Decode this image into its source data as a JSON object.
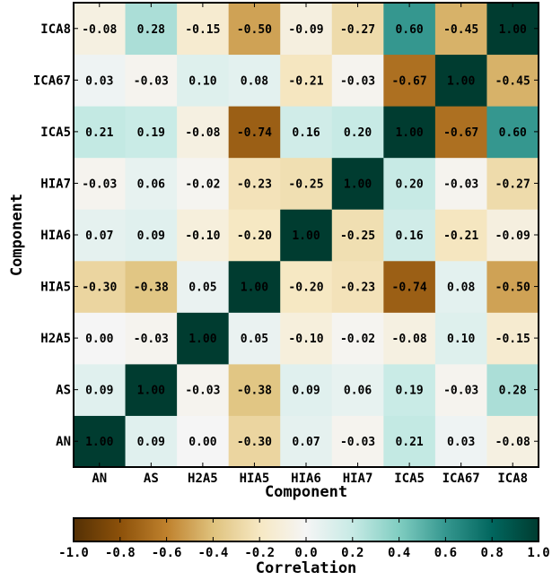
{
  "chart_data": {
    "type": "heatmap",
    "x_categories": [
      "AN",
      "AS",
      "H2A5",
      "HIA5",
      "HIA6",
      "HIA7",
      "ICA5",
      "ICA67",
      "ICA8"
    ],
    "y_categories": [
      "AN",
      "AS",
      "H2A5",
      "HIA5",
      "HIA6",
      "HIA7",
      "ICA5",
      "ICA67",
      "ICA8"
    ],
    "y_order": "bottom-to-top",
    "matrix": [
      [
        1.0,
        0.09,
        0.0,
        -0.3,
        0.07,
        -0.03,
        0.21,
        0.03,
        -0.08
      ],
      [
        0.09,
        1.0,
        -0.03,
        -0.38,
        0.09,
        0.06,
        0.19,
        -0.03,
        0.28
      ],
      [
        0.0,
        -0.03,
        1.0,
        0.05,
        -0.1,
        -0.02,
        -0.08,
        0.1,
        -0.15
      ],
      [
        -0.3,
        -0.38,
        0.05,
        1.0,
        -0.2,
        -0.23,
        -0.74,
        0.08,
        -0.5
      ],
      [
        0.07,
        0.09,
        -0.1,
        -0.2,
        1.0,
        -0.25,
        0.16,
        -0.21,
        -0.09
      ],
      [
        -0.03,
        0.06,
        -0.02,
        -0.23,
        -0.25,
        1.0,
        0.2,
        -0.03,
        -0.27
      ],
      [
        0.21,
        0.19,
        -0.08,
        -0.74,
        0.16,
        0.2,
        1.0,
        -0.67,
        0.6
      ],
      [
        0.03,
        -0.03,
        0.1,
        0.08,
        -0.21,
        -0.03,
        -0.67,
        1.0,
        -0.45
      ],
      [
        -0.08,
        0.28,
        -0.15,
        -0.5,
        -0.09,
        -0.27,
        0.6,
        -0.45,
        1.0
      ]
    ],
    "xlabel": "Component",
    "ylabel": "Component",
    "colorbar": {
      "label": "Correlation",
      "range": [
        -1.0,
        1.0
      ],
      "orientation": "horizontal",
      "ticks": [
        "-1.0",
        "-0.8",
        "-0.6",
        "-0.4",
        "-0.2",
        "0.0",
        "0.2",
        "0.4",
        "0.6",
        "0.8",
        "1.0"
      ],
      "colormap": [
        "#543005",
        "#8c510a",
        "#bf812d",
        "#dfc27d",
        "#f6e8c3",
        "#f5f5f5",
        "#c7eae5",
        "#80cdc1",
        "#35978f",
        "#01665e",
        "#003c30"
      ]
    }
  }
}
